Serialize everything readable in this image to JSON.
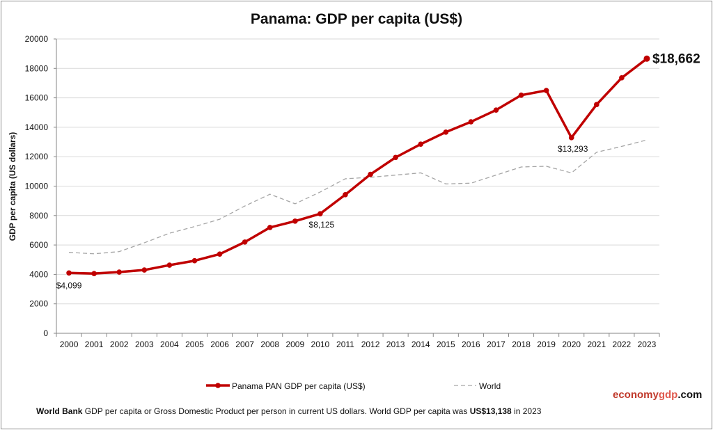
{
  "chart_data": {
    "type": "line",
    "title": "Panama: GDP per capita (US$)",
    "xlabel": "",
    "ylabel": "GDP per capita (US dollars)",
    "ylim": [
      0,
      20000
    ],
    "yticks": [
      "0",
      "2000",
      "4000",
      "6000",
      "8000",
      "10000",
      "12000",
      "14000",
      "16000",
      "18000",
      "20000"
    ],
    "grid": true,
    "legend": "bottom",
    "categories": [
      "2000",
      "2001",
      "2002",
      "2003",
      "2004",
      "2005",
      "2006",
      "2007",
      "2008",
      "2009",
      "2010",
      "2011",
      "2012",
      "2013",
      "2014",
      "2015",
      "2016",
      "2017",
      "2018",
      "2019",
      "2020",
      "2021",
      "2022",
      "2023"
    ],
    "series": [
      {
        "name": "Panama PAN GDP per capita (US$)",
        "color": "#c00000",
        "style": "solid-markers",
        "values": [
          4099,
          4060,
          4160,
          4300,
          4630,
          4930,
          5380,
          6200,
          7190,
          7620,
          8125,
          9420,
          10800,
          11950,
          12850,
          13670,
          14370,
          15170,
          16180,
          16500,
          13293,
          15540,
          17360,
          18662
        ]
      },
      {
        "name": "World",
        "color": "#a6a6a6",
        "style": "dashed",
        "values": [
          5500,
          5400,
          5550,
          6150,
          6800,
          7250,
          7750,
          8650,
          9450,
          8800,
          9600,
          10500,
          10600,
          10750,
          10900,
          10150,
          10200,
          10750,
          11300,
          11350,
          10900,
          12300,
          12700,
          13138
        ]
      }
    ],
    "annotations": [
      {
        "year": "2000",
        "text": "$4,099"
      },
      {
        "year": "2010",
        "text": "$8,125"
      },
      {
        "year": "2020",
        "text": "$13,293"
      },
      {
        "year": "2023",
        "text": "$18,662"
      }
    ]
  },
  "brand": {
    "part1": "economy",
    "part2": "gdp",
    "part3": ".com"
  },
  "footer": {
    "source": "World Bank",
    "text1": " GDP per capita or Gross Domestic Product per person  in current US dollars.   World GDP per capita was ",
    "world_value": "US$13,138",
    "text2": "  in 2023"
  }
}
